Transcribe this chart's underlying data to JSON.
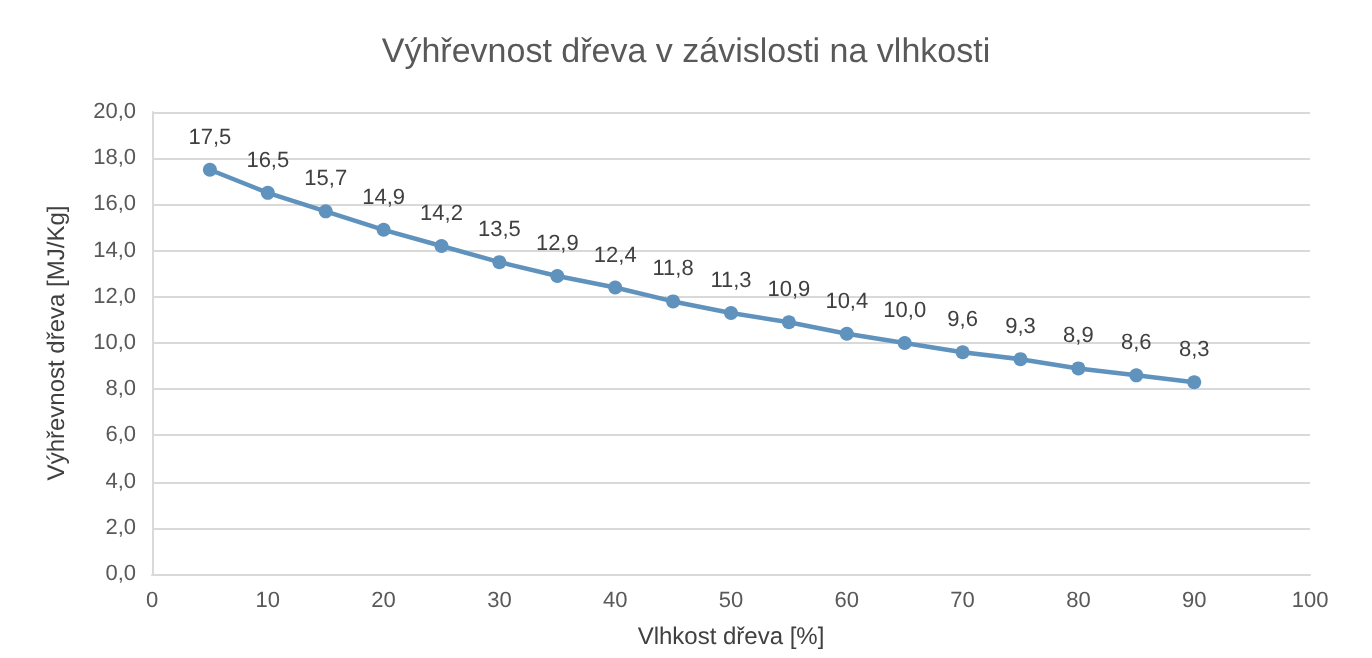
{
  "chart_data": {
    "type": "line",
    "title": "Výhřevnost dřeva v závislosti na vlhkosti",
    "xlabel": "Vlhkost dřeva [%]",
    "ylabel": "Výhřevnost dřeva [MJ/Kg]",
    "x": [
      5,
      10,
      15,
      20,
      25,
      30,
      35,
      40,
      45,
      50,
      55,
      60,
      65,
      70,
      75,
      80,
      85,
      90
    ],
    "series": [
      {
        "color": "#5f93bd",
        "values": [
          17.5,
          16.5,
          15.7,
          14.9,
          14.2,
          13.5,
          12.9,
          12.4,
          11.8,
          11.3,
          10.9,
          10.4,
          10.0,
          9.6,
          9.3,
          8.9,
          8.6,
          8.3
        ],
        "value_labels": [
          "17,5",
          "16,5",
          "15,7",
          "14,9",
          "14,2",
          "13,5",
          "12,9",
          "12,4",
          "11,8",
          "11,3",
          "10,9",
          "10,4",
          "10,0",
          "9,6",
          "9,3",
          "8,9",
          "8,6",
          "8,3"
        ]
      }
    ],
    "xlim": [
      0,
      100
    ],
    "xticks": [
      0,
      10,
      20,
      30,
      40,
      50,
      60,
      70,
      80,
      90,
      100
    ],
    "ylim": [
      0,
      20
    ],
    "yticks": [
      {
        "value": 0,
        "label": "0,0"
      },
      {
        "value": 2,
        "label": "2,0"
      },
      {
        "value": 4,
        "label": "4,0"
      },
      {
        "value": 6,
        "label": "6,0"
      },
      {
        "value": 8,
        "label": "8,0"
      },
      {
        "value": 10,
        "label": "10,0"
      },
      {
        "value": 12,
        "label": "12,0"
      },
      {
        "value": 14,
        "label": "14,0"
      },
      {
        "value": 16,
        "label": "16,0"
      },
      {
        "value": 18,
        "label": "18,0"
      },
      {
        "value": 20,
        "label": "20,0"
      }
    ],
    "grid": "y",
    "marker": "circle",
    "line_style": "solid"
  }
}
